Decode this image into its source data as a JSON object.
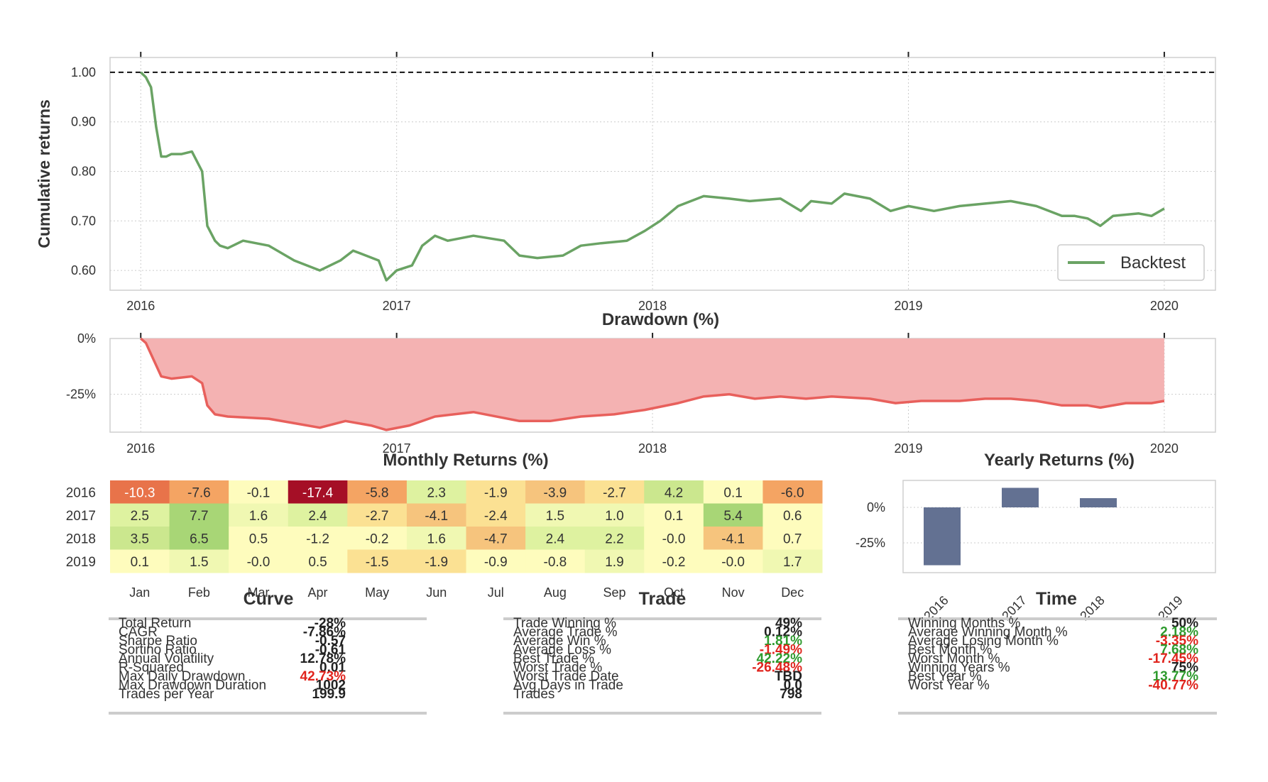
{
  "colors": {
    "backtest_line": "#6aa364",
    "drawdown_line": "#e8605c",
    "drawdown_fill": "#f4b2b2",
    "yearly_bar": "#637192",
    "positive": "#2e9b2e",
    "negative": "#e0241d",
    "rule": "#cccccc",
    "grid": "#cccccc",
    "axis_frame": "#cfcfcf"
  },
  "chart_data": [
    {
      "id": "cumulative",
      "type": "line",
      "title": "",
      "xlabel": "",
      "ylabel": "Cumulative returns",
      "ylim": [
        0.56,
        1.03
      ],
      "xlim": [
        2015.88,
        2020.2
      ],
      "x_ticks": [
        2016,
        2017,
        2018,
        2019,
        2020
      ],
      "x_tick_labels": [
        "2016",
        "2017",
        "2018",
        "2019",
        "2020"
      ],
      "y_ticks": [
        0.6,
        0.7,
        0.8,
        0.9,
        1.0
      ],
      "y_tick_labels": [
        "0.60",
        "0.70",
        "0.80",
        "0.90",
        "1.00"
      ],
      "reference_line": 1.0,
      "legend": "lower-right",
      "grid": true,
      "series": [
        {
          "name": "Backtest",
          "x": [
            2016.0,
            2016.02,
            2016.04,
            2016.06,
            2016.08,
            2016.1,
            2016.12,
            2016.16,
            2016.2,
            2016.24,
            2016.26,
            2016.29,
            2016.31,
            2016.34,
            2016.4,
            2016.5,
            2016.6,
            2016.7,
            2016.78,
            2016.83,
            2016.88,
            2016.93,
            2016.96,
            2017.0,
            2017.06,
            2017.1,
            2017.15,
            2017.2,
            2017.3,
            2017.42,
            2017.48,
            2017.55,
            2017.65,
            2017.72,
            2017.8,
            2017.9,
            2017.97,
            2018.03,
            2018.1,
            2018.2,
            2018.3,
            2018.38,
            2018.5,
            2018.58,
            2018.62,
            2018.7,
            2018.75,
            2018.85,
            2018.93,
            2019.0,
            2019.1,
            2019.2,
            2019.3,
            2019.4,
            2019.5,
            2019.6,
            2019.65,
            2019.7,
            2019.75,
            2019.8,
            2019.9,
            2019.95,
            2020.0
          ],
          "values": [
            1.0,
            0.99,
            0.97,
            0.89,
            0.83,
            0.83,
            0.835,
            0.835,
            0.84,
            0.8,
            0.69,
            0.66,
            0.65,
            0.645,
            0.66,
            0.65,
            0.62,
            0.6,
            0.62,
            0.64,
            0.63,
            0.62,
            0.58,
            0.6,
            0.61,
            0.65,
            0.67,
            0.66,
            0.67,
            0.66,
            0.63,
            0.625,
            0.63,
            0.65,
            0.655,
            0.66,
            0.68,
            0.7,
            0.73,
            0.75,
            0.745,
            0.74,
            0.745,
            0.72,
            0.74,
            0.735,
            0.755,
            0.745,
            0.72,
            0.73,
            0.72,
            0.73,
            0.735,
            0.74,
            0.73,
            0.71,
            0.71,
            0.705,
            0.69,
            0.71,
            0.715,
            0.71,
            0.725
          ]
        }
      ]
    },
    {
      "id": "drawdown",
      "type": "area",
      "title": "Drawdown (%)",
      "xlabel": "",
      "ylabel": "",
      "ylim": [
        -42,
        0
      ],
      "xlim": [
        2015.88,
        2020.2
      ],
      "x_ticks": [
        2016,
        2017,
        2018,
        2019,
        2020
      ],
      "x_tick_labels": [
        "2016",
        "2017",
        "2018",
        "2019",
        "2020"
      ],
      "y_ticks": [
        0,
        -25
      ],
      "y_tick_labels": [
        "0%",
        "-25%"
      ],
      "grid": true,
      "series": [
        {
          "x": [
            2016.0,
            2016.02,
            2016.06,
            2016.08,
            2016.12,
            2016.2,
            2016.24,
            2016.26,
            2016.29,
            2016.34,
            2016.5,
            2016.6,
            2016.7,
            2016.8,
            2016.9,
            2016.96,
            2017.05,
            2017.15,
            2017.3,
            2017.48,
            2017.6,
            2017.72,
            2017.85,
            2017.97,
            2018.1,
            2018.2,
            2018.3,
            2018.4,
            2018.5,
            2018.6,
            2018.7,
            2018.85,
            2018.95,
            2019.05,
            2019.2,
            2019.3,
            2019.4,
            2019.5,
            2019.6,
            2019.7,
            2019.75,
            2019.85,
            2019.95,
            2020.0
          ],
          "values": [
            0,
            -2,
            -12,
            -17,
            -18,
            -17,
            -20,
            -30,
            -34,
            -35,
            -36,
            -38,
            -40,
            -37,
            -39,
            -41,
            -39,
            -35,
            -33,
            -37,
            -37,
            -35,
            -34,
            -32,
            -29,
            -26,
            -25,
            -27,
            -26,
            -27,
            -26,
            -27,
            -29,
            -28,
            -28,
            -27,
            -27,
            -28,
            -30,
            -30,
            -31,
            -29,
            -29,
            -28
          ]
        }
      ]
    },
    {
      "id": "monthly",
      "type": "heatmap",
      "title": "Monthly Returns (%)",
      "columns": [
        "Jan",
        "Feb",
        "Mar",
        "Apr",
        "May",
        "Jun",
        "Jul",
        "Aug",
        "Sep",
        "Oct",
        "Nov",
        "Dec"
      ],
      "rows": [
        "2016",
        "2017",
        "2018",
        "2019"
      ],
      "values": [
        [
          -10.3,
          -7.6,
          -0.1,
          -17.4,
          -5.8,
          2.3,
          -1.9,
          -3.9,
          -2.7,
          4.2,
          0.1,
          -6.0
        ],
        [
          2.5,
          7.7,
          1.6,
          2.4,
          -2.7,
          -4.1,
          -2.4,
          1.5,
          1.0,
          0.1,
          5.4,
          0.6
        ],
        [
          3.5,
          6.5,
          0.5,
          -1.2,
          -0.2,
          1.6,
          -4.7,
          2.4,
          2.2,
          -0.0,
          -4.1,
          0.7
        ],
        [
          0.1,
          1.5,
          -0.0,
          0.5,
          -1.5,
          -1.9,
          -0.9,
          -0.8,
          1.9,
          -0.2,
          -0.0,
          1.7
        ]
      ],
      "labels": [
        [
          "-10.3",
          "-7.6",
          "-0.1",
          "-17.4",
          "-5.8",
          "2.3",
          "-1.9",
          "-3.9",
          "-2.7",
          "4.2",
          "0.1",
          "-6.0"
        ],
        [
          "2.5",
          "7.7",
          "1.6",
          "2.4",
          "-2.7",
          "-4.1",
          "-2.4",
          "1.5",
          "1.0",
          "0.1",
          "5.4",
          "0.6"
        ],
        [
          "3.5",
          "6.5",
          "0.5",
          "-1.2",
          "-0.2",
          "1.6",
          "-4.7",
          "2.4",
          "2.2",
          "-0.0",
          "-4.1",
          "0.7"
        ],
        [
          "0.1",
          "1.5",
          "-0.0",
          "0.5",
          "-1.5",
          "-1.9",
          "-0.9",
          "-0.8",
          "1.9",
          "-0.2",
          "-0.0",
          "1.7"
        ]
      ]
    },
    {
      "id": "yearly",
      "type": "bar",
      "title": "Yearly Returns (%)",
      "categories": [
        "2016",
        "2017",
        "2018",
        "2019"
      ],
      "values": [
        -40.77,
        13.77,
        6.5,
        0.0
      ],
      "ylim": [
        -46,
        19
      ],
      "y_ticks": [
        0,
        -25
      ],
      "y_tick_labels": [
        "0%",
        "-25%"
      ],
      "grid": true
    }
  ],
  "tables": [
    {
      "title": "Curve",
      "rows": [
        {
          "label": "Total Return",
          "value": "-28%",
          "tone": "neutral"
        },
        {
          "label": "CAGR",
          "value": "-7.86%",
          "tone": "neutral"
        },
        {
          "label": "Sharpe Ratio",
          "value": "-0.57",
          "tone": "neutral"
        },
        {
          "label": "Sortino Ratio",
          "value": "-0.61",
          "tone": "neutral"
        },
        {
          "label": "Annual Volatility",
          "value": "12.78%",
          "tone": "neutral"
        },
        {
          "label": "R-Squared",
          "value": "0.01",
          "tone": "neutral"
        },
        {
          "label": "Max Daily Drawdown",
          "value": "42.73%",
          "tone": "negative"
        },
        {
          "label": "Max Drawdown Duration",
          "value": "1002",
          "tone": "neutral"
        },
        {
          "label": "Trades per Year",
          "value": "199.9",
          "tone": "neutral"
        }
      ]
    },
    {
      "title": "Trade",
      "rows": [
        {
          "label": "Trade Winning %",
          "value": "49%",
          "tone": "neutral"
        },
        {
          "label": "Average Trade %",
          "value": "0.12%",
          "tone": "neutral"
        },
        {
          "label": "Average Win %",
          "value": "1.81%",
          "tone": "positive"
        },
        {
          "label": "Average Loss %",
          "value": "-1.49%",
          "tone": "negative"
        },
        {
          "label": "Best Trade %",
          "value": "42.22%",
          "tone": "positive"
        },
        {
          "label": "Worst Trade %",
          "value": "-26.48%",
          "tone": "negative"
        },
        {
          "label": "Worst Trade Date",
          "value": "TBD",
          "tone": "neutral"
        },
        {
          "label": "Avg Days in Trade",
          "value": "0.0",
          "tone": "neutral"
        },
        {
          "label": "Trades",
          "value": "798",
          "tone": "neutral"
        }
      ]
    },
    {
      "title": "Time",
      "rows": [
        {
          "label": "Winning Months %",
          "value": "50%",
          "tone": "neutral"
        },
        {
          "label": "Average Winning Month %",
          "value": "2.18%",
          "tone": "positive"
        },
        {
          "label": "Average Losing Month %",
          "value": "-3.35%",
          "tone": "negative"
        },
        {
          "label": "Best Month %",
          "value": "7.68%",
          "tone": "positive"
        },
        {
          "label": "Worst Month %",
          "value": "-17.45%",
          "tone": "negative"
        },
        {
          "label": "Winning Years %",
          "value": "75%",
          "tone": "neutral"
        },
        {
          "label": "Best Year %",
          "value": "13.77%",
          "tone": "positive"
        },
        {
          "label": "Worst Year %",
          "value": "-40.77%",
          "tone": "negative"
        }
      ]
    }
  ]
}
